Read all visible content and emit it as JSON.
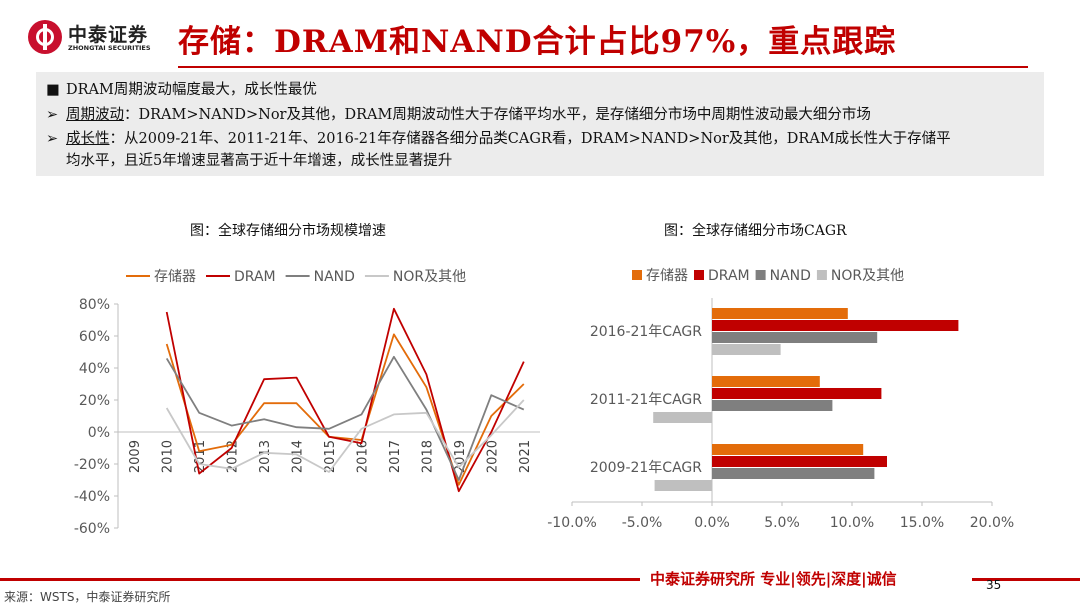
{
  "header": {
    "logo_cn": "中泰证券",
    "logo_en": "ZHONGTAI SECURITIES",
    "title": "存储：DRAM和NAND合计占比97%，重点跟踪"
  },
  "summary": {
    "line1": "DRAM周期波动幅度最大，成长性最优",
    "line2_label": "周期波动",
    "line2_text": "：DRAM>NAND>Nor及其他，DRAM周期波动性大于存储平均水平，是存储细分市场中周期性波动最大细分市场",
    "line3_label": "成长性",
    "line3_text": "：从2009-21年、2011-21年、2016-21年存储器各细分品类CAGR看，DRAM>NAND>Nor及其他，DRAM成长性大于存储平",
    "line4_text": "均水平，且近5年增速显著高于近十年增速，成长性显著提升",
    "bullet_square": "■",
    "bullet_arrow": "➢"
  },
  "chart_data": [
    {
      "type": "line",
      "title": "图：全球存储细分市场规模增速",
      "x": [
        "2009",
        "2010",
        "2011",
        "2012",
        "2013",
        "2014",
        "2015",
        "2016",
        "2017",
        "2018",
        "2019",
        "2020",
        "2021"
      ],
      "ylim": [
        -60,
        80
      ],
      "yticks": [
        "80%",
        "60%",
        "40%",
        "20%",
        "0%",
        "-20%",
        "-40%",
        "-60%"
      ],
      "legend_position": "top",
      "series": [
        {
          "name": "存储器",
          "color": "#e36c0a",
          "values": [
            null,
            55,
            -12,
            -8,
            18,
            18,
            -3,
            -5,
            61,
            28,
            -33,
            10,
            30
          ]
        },
        {
          "name": "DRAM",
          "color": "#c00000",
          "values": [
            null,
            75,
            -26,
            -10,
            33,
            34,
            -3,
            -7,
            77,
            36,
            -37,
            0,
            44
          ]
        },
        {
          "name": "NAND",
          "color": "#7f7f7f",
          "values": [
            null,
            46,
            12,
            4,
            8,
            3,
            2,
            11,
            47,
            14,
            -30,
            23,
            14
          ]
        },
        {
          "name": "NOR及其他",
          "color": "#c8c8c8",
          "values": [
            null,
            15,
            -20,
            -23,
            -13,
            -14,
            -25,
            2,
            11,
            12,
            -22,
            -2,
            20
          ]
        }
      ]
    },
    {
      "type": "bar",
      "orientation": "horizontal",
      "title": "图：全球存储细分市场CAGR",
      "categories": [
        "2016-21年CAGR",
        "2011-21年CAGR",
        "2009-21年CAGR"
      ],
      "xlim": [
        -10,
        20
      ],
      "xticks": [
        "-10.0%",
        "-5.0%",
        "0.0%",
        "5.0%",
        "10.0%",
        "15.0%",
        "20.0%"
      ],
      "legend_position": "top",
      "series": [
        {
          "name": "存储器",
          "color": "#e36c0a",
          "values": [
            9.7,
            7.7,
            10.8
          ]
        },
        {
          "name": "DRAM",
          "color": "#c00000",
          "values": [
            17.6,
            12.1,
            12.5
          ]
        },
        {
          "name": "NAND",
          "color": "#7f7f7f",
          "values": [
            11.8,
            8.6,
            11.6
          ]
        },
        {
          "name": "NOR及其他",
          "color": "#bfbfbf",
          "values": [
            4.9,
            -4.2,
            -4.1
          ]
        }
      ]
    }
  ],
  "footer": {
    "slogan": "中泰证券研究所 专业|领先|深度|诚信",
    "page": "35",
    "source": "来源：WSTS，中泰证券研究所"
  }
}
